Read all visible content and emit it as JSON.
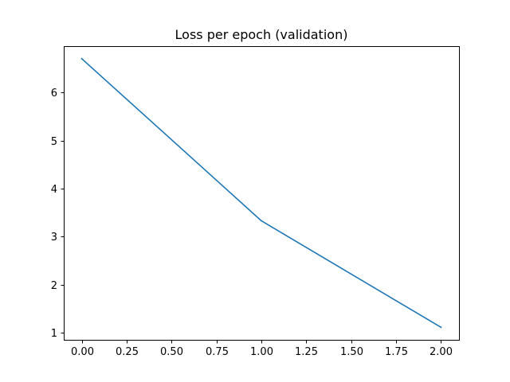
{
  "chart_data": {
    "type": "line",
    "title": "Loss per epoch (validation)",
    "xlabel": "",
    "ylabel": "",
    "x": [
      0,
      1,
      2
    ],
    "series": [
      {
        "values": [
          6.71,
          3.33,
          1.11
        ],
        "color": "#1f77b4"
      }
    ],
    "xlim": [
      -0.1,
      2.1
    ],
    "ylim": [
      0.85,
      6.97
    ],
    "xticks": [
      0.0,
      0.25,
      0.5,
      0.75,
      1.0,
      1.25,
      1.5,
      1.75,
      2.0
    ],
    "xtick_labels": [
      "0.00",
      "0.25",
      "0.50",
      "0.75",
      "1.00",
      "1.25",
      "1.50",
      "1.75",
      "2.00"
    ],
    "yticks": [
      1,
      2,
      3,
      4,
      5,
      6
    ],
    "ytick_labels": [
      "1",
      "2",
      "3",
      "4",
      "5",
      "6"
    ],
    "grid": false,
    "legend": false
  }
}
